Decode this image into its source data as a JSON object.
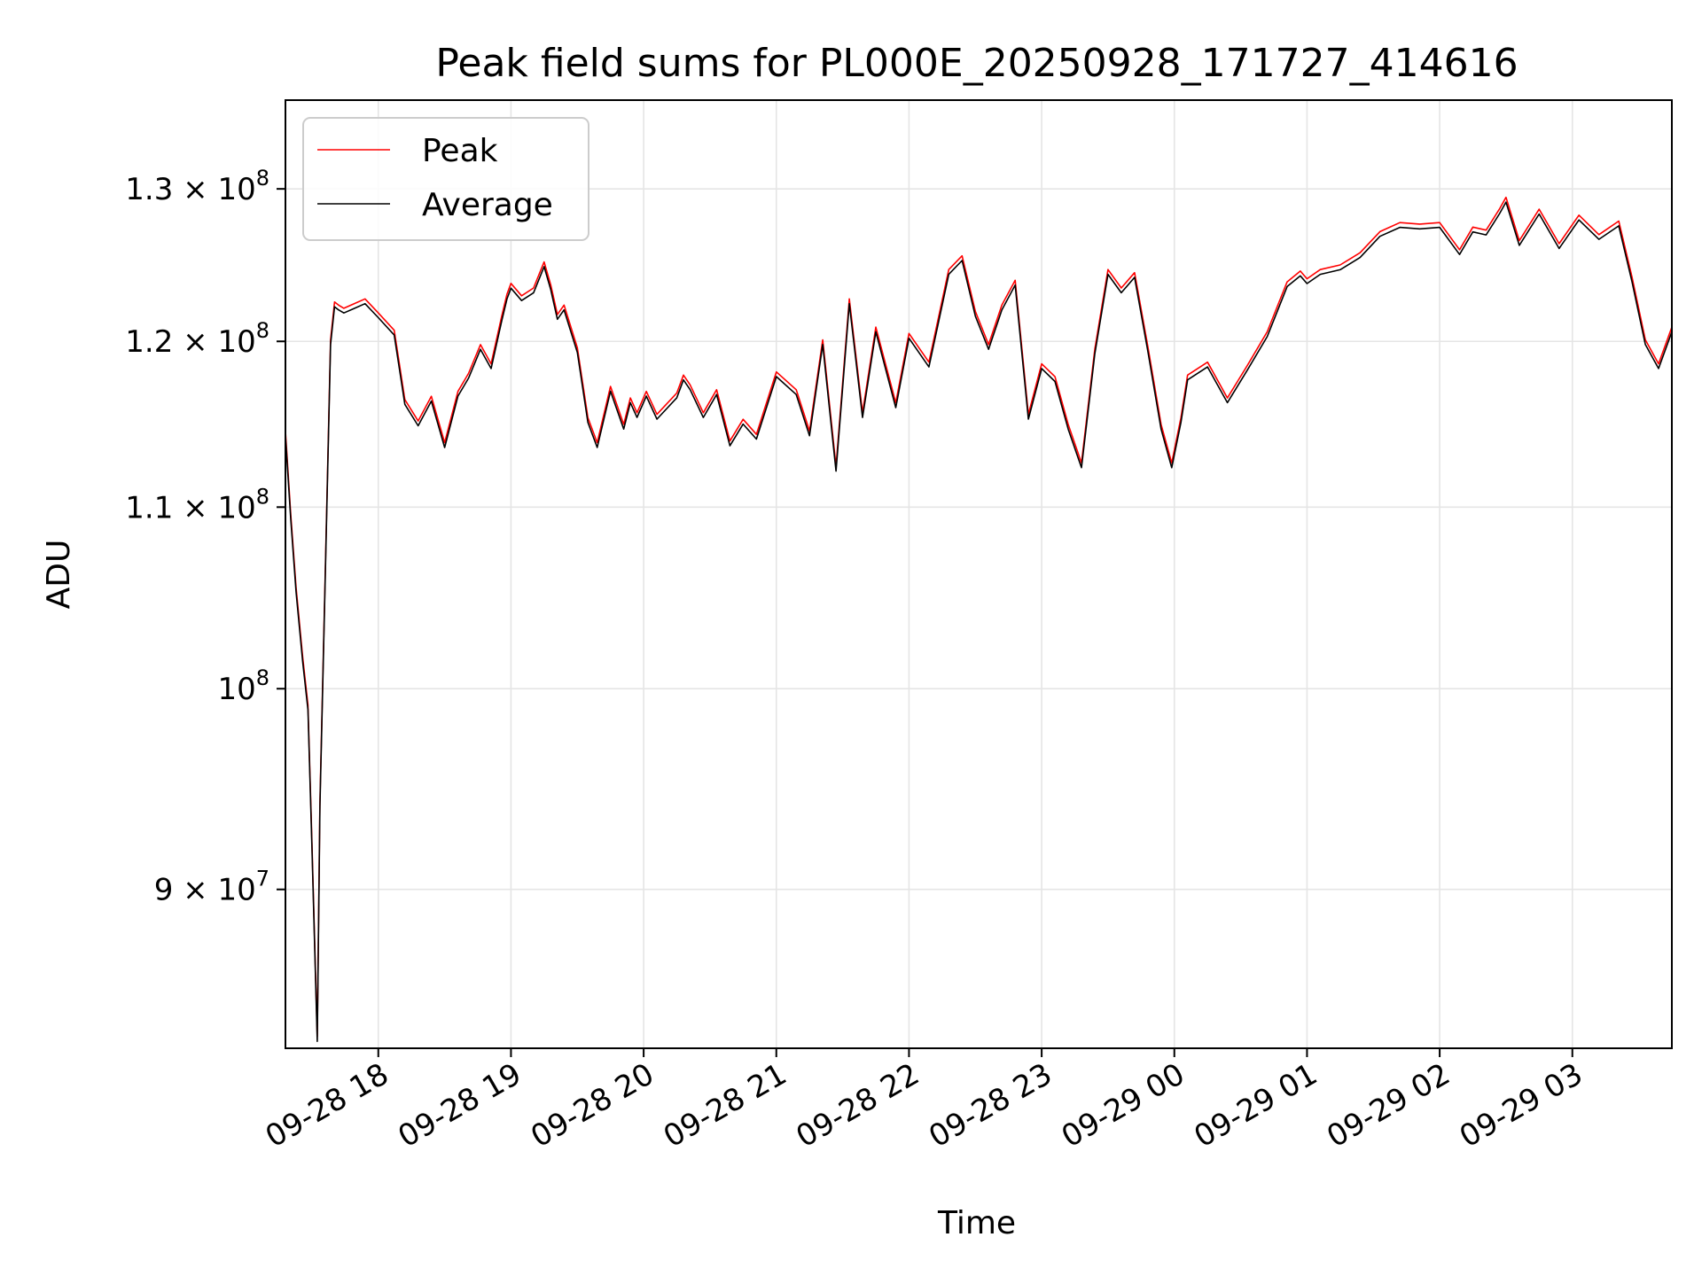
{
  "chart_data": {
    "type": "line",
    "title": "Peak field sums for PL000E_20250928_171727_414616",
    "xlabel": "Time",
    "ylabel": "ADU",
    "yscale": "log",
    "grid": true,
    "legend_location": "top-left",
    "x_unit": "hours since 09-28 17:17",
    "xlim": [
      0,
      10.45
    ],
    "ylim": [
      82800000,
      136200000
    ],
    "x_ticks": [
      {
        "value": 0.7,
        "label": "09-28 18"
      },
      {
        "value": 1.7,
        "label": "09-28 19"
      },
      {
        "value": 2.7,
        "label": "09-28 20"
      },
      {
        "value": 3.7,
        "label": "09-28 21"
      },
      {
        "value": 4.7,
        "label": "09-28 22"
      },
      {
        "value": 5.7,
        "label": "09-28 23"
      },
      {
        "value": 6.7,
        "label": "09-29 00"
      },
      {
        "value": 7.7,
        "label": "09-29 01"
      },
      {
        "value": 8.7,
        "label": "09-29 02"
      },
      {
        "value": 9.7,
        "label": "09-29 03"
      }
    ],
    "y_ticks": [
      {
        "value": 90000000,
        "mantissa": "9 × 10",
        "exp": "7"
      },
      {
        "value": 100000000,
        "mantissa": "10",
        "exp": "8"
      },
      {
        "value": 110000000,
        "mantissa": "1.1 × 10",
        "exp": "8"
      },
      {
        "value": 120000000,
        "mantissa": "1.2 × 10",
        "exp": "8"
      },
      {
        "value": 130000000,
        "mantissa": "1.3 × 10",
        "exp": "8"
      }
    ],
    "series": [
      {
        "name": "Peak",
        "color": "#ff0000",
        "offset": 0.25
      },
      {
        "name": "Average",
        "color": "#000000",
        "offset": 0
      }
    ],
    "x": [
      0,
      0.04,
      0.08,
      0.13,
      0.17,
      0.2,
      0.24,
      0.26,
      0.3,
      0.34,
      0.37,
      0.4,
      0.44,
      0.52,
      0.6,
      0.7,
      0.82,
      0.9,
      1.0,
      1.1,
      1.2,
      1.3,
      1.38,
      1.47,
      1.55,
      1.63,
      1.67,
      1.7,
      1.78,
      1.87,
      1.95,
      2.0,
      2.05,
      2.1,
      2.2,
      2.28,
      2.35,
      2.45,
      2.55,
      2.6,
      2.65,
      2.72,
      2.8,
      2.95,
      3.0,
      3.05,
      3.15,
      3.25,
      3.35,
      3.45,
      3.55,
      3.7,
      3.85,
      3.95,
      4.05,
      4.15,
      4.25,
      4.35,
      4.45,
      4.6,
      4.7,
      4.85,
      5.0,
      5.1,
      5.2,
      5.3,
      5.4,
      5.5,
      5.6,
      5.7,
      5.8,
      5.9,
      6.0,
      6.1,
      6.2,
      6.3,
      6.4,
      6.5,
      6.6,
      6.68,
      6.75,
      6.8,
      6.95,
      7.1,
      7.25,
      7.4,
      7.55,
      7.65,
      7.7,
      7.8,
      7.95,
      8.1,
      8.25,
      8.4,
      8.55,
      8.7,
      8.85,
      8.95,
      9.05,
      9.15,
      9.2,
      9.3,
      9.45,
      9.6,
      9.75,
      9.9,
      10.05,
      10.15,
      10.25,
      10.35,
      10.45
    ],
    "values": [
      114200000,
      109300000,
      105200000,
      101400000,
      98900000,
      92000000,
      83100000,
      94000000,
      106000000,
      119800000,
      122200000,
      122000000,
      121800000,
      122100000,
      122400000,
      121500000,
      120400000,
      116100000,
      114800000,
      116300000,
      113500000,
      116600000,
      117700000,
      119500000,
      118300000,
      121300000,
      122700000,
      123400000,
      122600000,
      123100000,
      124800000,
      123300000,
      121400000,
      122000000,
      119300000,
      115000000,
      113500000,
      116900000,
      114600000,
      116200000,
      115300000,
      116600000,
      115200000,
      116500000,
      117600000,
      117000000,
      115300000,
      116700000,
      113600000,
      114900000,
      114000000,
      117800000,
      116700000,
      114200000,
      119800000,
      112100000,
      122400000,
      115300000,
      120600000,
      115900000,
      120200000,
      118400000,
      124300000,
      125200000,
      121600000,
      119500000,
      122000000,
      123600000,
      115200000,
      118300000,
      117500000,
      114600000,
      112300000,
      119200000,
      124300000,
      123100000,
      124100000,
      119400000,
      114600000,
      112300000,
      115000000,
      117600000,
      118400000,
      116200000,
      118200000,
      120300000,
      123500000,
      124200000,
      123700000,
      124300000,
      124600000,
      125400000,
      126800000,
      127400000,
      127300000,
      127400000,
      125600000,
      127100000,
      126900000,
      128300000,
      129100000,
      126200000,
      128300000,
      126000000,
      127900000,
      126600000,
      127500000,
      123800000,
      119800000,
      118300000,
      120600000
    ]
  }
}
